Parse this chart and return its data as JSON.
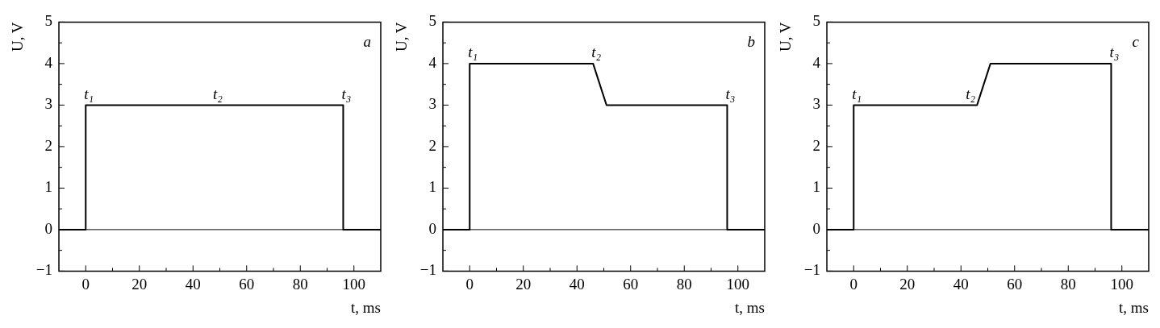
{
  "chart_data": [
    {
      "type": "line",
      "xlabel": "t, ms",
      "ylabel": "U, V",
      "xlim": [
        -10,
        110
      ],
      "ylim": [
        -1,
        5
      ],
      "xticks": [
        0,
        {
          "value": 10,
          "label": null
        },
        20,
        {
          "value": 30,
          "label": null
        },
        40,
        {
          "value": 50,
          "label": null
        },
        60,
        {
          "value": 70,
          "label": null
        },
        80,
        {
          "value": 90,
          "label": null
        },
        100
      ],
      "yticks": [
        -1,
        {
          "value": -0.5,
          "label": null
        },
        0,
        {
          "value": 0.5,
          "label": null
        },
        1,
        {
          "value": 1.5,
          "label": null
        },
        2,
        {
          "value": 2.5,
          "label": null
        },
        3,
        {
          "value": 3.5,
          "label": null
        },
        4,
        {
          "value": 4.5,
          "label": null
        },
        5
      ],
      "series": [
        {
          "color": "#000000",
          "x": [
            -10,
            0,
            0,
            96,
            96,
            110
          ],
          "values": [
            0,
            0,
            3,
            3,
            0,
            0
          ]
        }
      ],
      "ref_lines": [
        {
          "axis": "y",
          "value": 0,
          "color": "#000000"
        }
      ],
      "annotations": [
        "a",
        {
          "text": "t₁",
          "x": 0,
          "y": 3
        },
        {
          "text": "t₂",
          "x": 48,
          "y": 3
        },
        {
          "text": "t₃",
          "x": 96,
          "y": 3
        }
      ],
      "grid": false,
      "legend": false,
      "marker": "none",
      "line_style": "solid"
    },
    {
      "type": "line",
      "xlabel": "t, ms",
      "ylabel": "U, V",
      "xlim": [
        -10,
        110
      ],
      "ylim": [
        -1,
        5
      ],
      "xticks": [
        0,
        {
          "value": 10,
          "label": null
        },
        20,
        {
          "value": 30,
          "label": null
        },
        40,
        {
          "value": 50,
          "label": null
        },
        60,
        {
          "value": 70,
          "label": null
        },
        80,
        {
          "value": 90,
          "label": null
        },
        100
      ],
      "yticks": [
        -1,
        {
          "value": -0.5,
          "label": null
        },
        0,
        {
          "value": 0.5,
          "label": null
        },
        1,
        {
          "value": 1.5,
          "label": null
        },
        2,
        {
          "value": 2.5,
          "label": null
        },
        3,
        {
          "value": 3.5,
          "label": null
        },
        4,
        {
          "value": 4.5,
          "label": null
        },
        5
      ],
      "series": [
        {
          "color": "#000000",
          "x": [
            -10,
            0,
            0,
            46,
            51,
            96,
            96,
            110
          ],
          "values": [
            0,
            0,
            4,
            4,
            3,
            3,
            0,
            0
          ]
        }
      ],
      "ref_lines": [
        {
          "axis": "y",
          "value": 0,
          "color": "#000000"
        }
      ],
      "annotations": [
        "b",
        {
          "text": "t₁",
          "x": 0,
          "y": 4
        },
        {
          "text": "t₂",
          "x": 46,
          "y": 4
        },
        {
          "text": "t₃",
          "x": 96,
          "y": 3
        }
      ],
      "grid": false,
      "legend": false,
      "marker": "none",
      "line_style": "solid"
    },
    {
      "type": "line",
      "xlabel": "t, ms",
      "ylabel": "U, V",
      "xlim": [
        -10,
        110
      ],
      "ylim": [
        -1,
        5
      ],
      "xticks": [
        0,
        {
          "value": 10,
          "label": null
        },
        20,
        {
          "value": 30,
          "label": null
        },
        40,
        {
          "value": 50,
          "label": null
        },
        60,
        {
          "value": 70,
          "label": null
        },
        80,
        {
          "value": 90,
          "label": null
        },
        100
      ],
      "yticks": [
        -1,
        {
          "value": -0.5,
          "label": null
        },
        0,
        {
          "value": 0.5,
          "label": null
        },
        1,
        {
          "value": 1.5,
          "label": null
        },
        2,
        {
          "value": 2.5,
          "label": null
        },
        3,
        {
          "value": 3.5,
          "label": null
        },
        4,
        {
          "value": 4.5,
          "label": null
        },
        5
      ],
      "series": [
        {
          "color": "#000000",
          "x": [
            -10,
            0,
            0,
            46,
            51,
            96,
            96,
            110
          ],
          "values": [
            0,
            0,
            3,
            3,
            4,
            4,
            0,
            0
          ]
        }
      ],
      "ref_lines": [
        {
          "axis": "y",
          "value": 0,
          "color": "#000000"
        }
      ],
      "annotations": [
        "c",
        {
          "text": "t₁",
          "x": 0,
          "y": 3
        },
        {
          "text": "t₂",
          "x": 46,
          "y": 3
        },
        {
          "text": "t₃",
          "x": 96,
          "y": 4
        }
      ],
      "grid": false,
      "legend": false,
      "marker": "none",
      "line_style": "solid"
    }
  ]
}
